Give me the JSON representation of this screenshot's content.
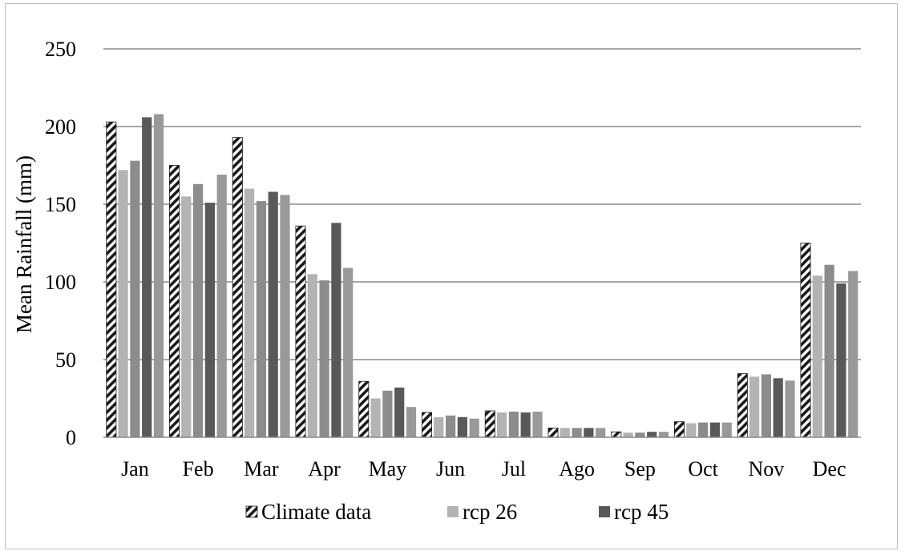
{
  "chart_data": {
    "type": "bar",
    "title": "",
    "xlabel": "",
    "ylabel": "Mean Rainfall (mm)",
    "ylim": [
      0,
      250
    ],
    "yticks": [
      0,
      50,
      100,
      150,
      200,
      250
    ],
    "grid": true,
    "legend_position": "bottom",
    "categories": [
      "Jan",
      "Feb",
      "Mar",
      "Apr",
      "May",
      "Jun",
      "Jul",
      "Ago",
      "Sep",
      "Oct",
      "Nov",
      "Dec"
    ],
    "series": [
      {
        "name": "Climate data",
        "color": "#1a1a1a",
        "pattern": "diagonal-hatch",
        "in_legend": true,
        "values": [
          203,
          175,
          193,
          136,
          36,
          16,
          17,
          6,
          3.5,
          10,
          41,
          125
        ]
      },
      {
        "name": "rcp 26",
        "color": "#b3b3b3",
        "in_legend": true,
        "values": [
          172,
          155,
          160,
          105,
          25,
          13,
          16,
          6,
          3,
          9,
          39,
          104
        ]
      },
      {
        "name": "",
        "color": "#8c8c8c",
        "in_legend": false,
        "values": [
          178,
          163,
          152,
          101,
          30,
          14,
          16.5,
          6,
          3,
          9.5,
          40.5,
          111
        ]
      },
      {
        "name": "rcp 45",
        "color": "#595959",
        "in_legend": true,
        "values": [
          206,
          151,
          158,
          138,
          32,
          13,
          16,
          6,
          3.5,
          9.5,
          38,
          99
        ]
      },
      {
        "name": "",
        "color": "#999999",
        "in_legend": false,
        "values": [
          208,
          169,
          156,
          109,
          19.5,
          12,
          16.5,
          6,
          3.5,
          9.5,
          36.5,
          107
        ]
      }
    ]
  }
}
